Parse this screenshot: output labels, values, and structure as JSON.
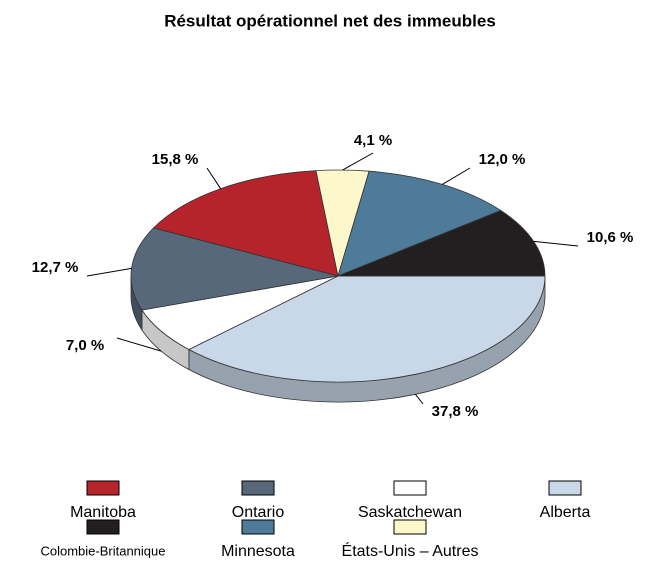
{
  "chart_data": {
    "type": "pie3d",
    "title": "Résultat opérationnel net des immeubles",
    "categories": [
      "Manitoba",
      "Ontario",
      "Saskatchewan",
      "Alberta",
      "Colombie-Britannique",
      "Minnesota",
      "États-Unis – Autres"
    ],
    "values": [
      15.8,
      12.7,
      7.0,
      37.8,
      10.6,
      12.0,
      4.1
    ],
    "value_labels": [
      "15,8 %",
      "12,7 %",
      "7,0 %",
      "37,8 %",
      "10,6 %",
      "12,0 %",
      "4,1 %"
    ],
    "colors": [
      "#b5242a",
      "#56687a",
      "#ffffff",
      "#c8d8e8",
      "#231f20",
      "#4f7b9a",
      "#fdf8cc"
    ]
  }
}
